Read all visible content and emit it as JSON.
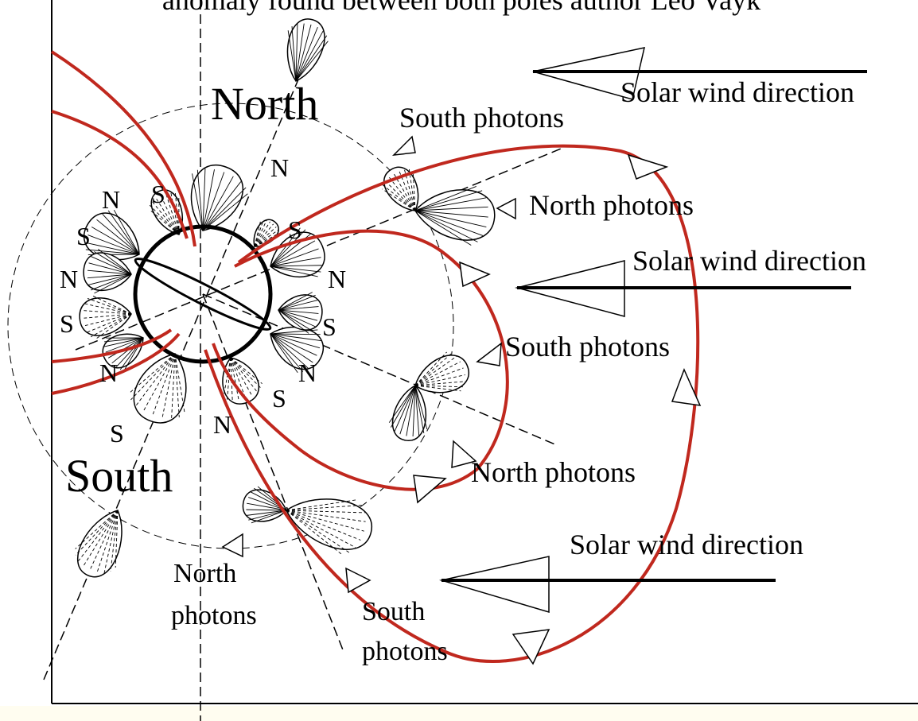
{
  "title": "anomaly found between both poles author Leo Vayk",
  "poles": {
    "north": "North",
    "south": "South"
  },
  "solar_wind": [
    "Solar wind direction",
    "Solar wind direction",
    "Solar wind direction"
  ],
  "photon_labels": [
    "South photons",
    "North photons",
    "South photons",
    "North photons"
  ],
  "photon_labels_two_line": [
    [
      "North",
      "photons"
    ],
    [
      "South",
      "photons"
    ]
  ],
  "pole_letters": [
    "S",
    "N",
    "N",
    "S",
    "S",
    "N",
    "N",
    "S",
    "S",
    "N",
    "N",
    "S",
    "N",
    "S"
  ]
}
